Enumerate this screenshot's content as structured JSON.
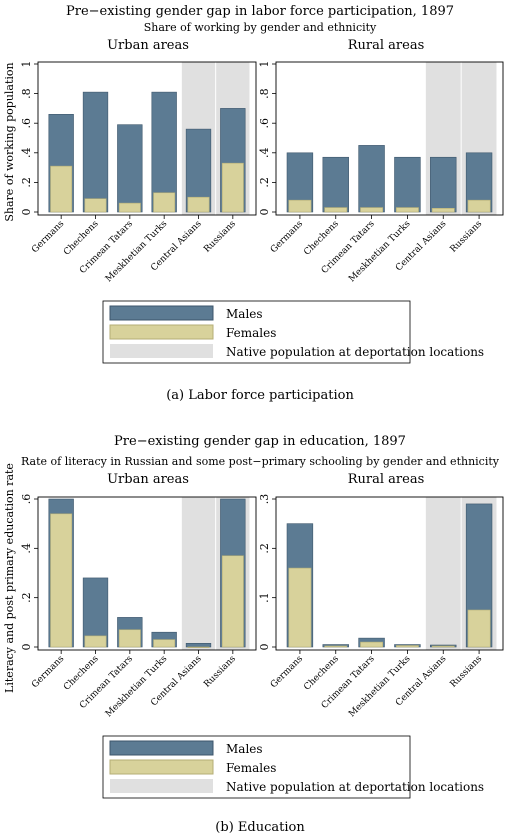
{
  "chart_data": [
    {
      "type": "bar",
      "title": "Pre−existing gender gap in labor force participation, 1897",
      "subtitle": "Share of working by gender and ethnicity",
      "ylabel": "Share of working population",
      "caption": "(a) Labor force participation",
      "ylim": [
        0,
        1
      ],
      "yticks": [
        0,
        0.2,
        0.4,
        0.6,
        0.8,
        1
      ],
      "ytick_labels": [
        "0",
        ".2",
        ".4",
        ".6",
        ".8",
        "1"
      ],
      "shaded_categories": [
        "Central Asians",
        "Russians"
      ],
      "categories": [
        "Germans",
        "Chechens",
        "Crimean Tatars",
        "Meskhetian Turks",
        "Central Asians",
        "Russians"
      ],
      "panels": [
        {
          "title": "Urban areas",
          "series": [
            {
              "name": "Males",
              "values": [
                0.66,
                0.81,
                0.59,
                0.81,
                0.56,
                0.7
              ]
            },
            {
              "name": "Females",
              "values": [
                0.31,
                0.09,
                0.06,
                0.13,
                0.1,
                0.33
              ]
            }
          ]
        },
        {
          "title": "Rural areas",
          "series": [
            {
              "name": "Males",
              "values": [
                0.4,
                0.37,
                0.45,
                0.37,
                0.37,
                0.4
              ]
            },
            {
              "name": "Females",
              "values": [
                0.08,
                0.03,
                0.03,
                0.03,
                0.025,
                0.08
              ]
            }
          ]
        }
      ],
      "legend": [
        "Males",
        "Females",
        "Native population at deportation locations"
      ]
    },
    {
      "type": "bar",
      "title": "Pre−existing gender gap in education, 1897",
      "subtitle": "Rate of literacy in Russian and some post−primary schooling by gender and ethnicity",
      "ylabel": "Literacy and post primary education rate",
      "caption": "(b) Education",
      "shaded_categories": [
        "Central Asians",
        "Russians"
      ],
      "categories": [
        "Germans",
        "Chechens",
        "Crimean Tatars",
        "Meskhetian Turks",
        "Central Asians",
        "Russians"
      ],
      "panels": [
        {
          "title": "Urban areas",
          "ylim": [
            0,
            0.6
          ],
          "yticks": [
            0,
            0.2,
            0.4,
            0.6
          ],
          "ytick_labels": [
            "0",
            ".2",
            ".4",
            ".6"
          ],
          "series": [
            {
              "name": "Males",
              "values": [
                0.6,
                0.28,
                0.12,
                0.06,
                0.015,
                0.6
              ]
            },
            {
              "name": "Females",
              "values": [
                0.54,
                0.045,
                0.07,
                0.03,
                0.0,
                0.37
              ]
            }
          ]
        },
        {
          "title": "Rural areas",
          "ylim": [
            0,
            0.3
          ],
          "yticks": [
            0,
            0.1,
            0.2,
            0.3
          ],
          "ytick_labels": [
            "0",
            ".1",
            ".2",
            ".3"
          ],
          "series": [
            {
              "name": "Males",
              "values": [
                0.25,
                0.005,
                0.018,
                0.005,
                0.004,
                0.29
              ]
            },
            {
              "name": "Females",
              "values": [
                0.16,
                0.002,
                0.01,
                0.003,
                0.002,
                0.075
              ]
            }
          ]
        }
      ],
      "legend": [
        "Males",
        "Females",
        "Native population at deportation locations"
      ]
    }
  ],
  "colors": {
    "males": "#5c7b93",
    "females": "#d8d29b",
    "shade": "#e0e0e0",
    "males_edge": "#3d566b",
    "females_edge": "#b5ae76"
  }
}
